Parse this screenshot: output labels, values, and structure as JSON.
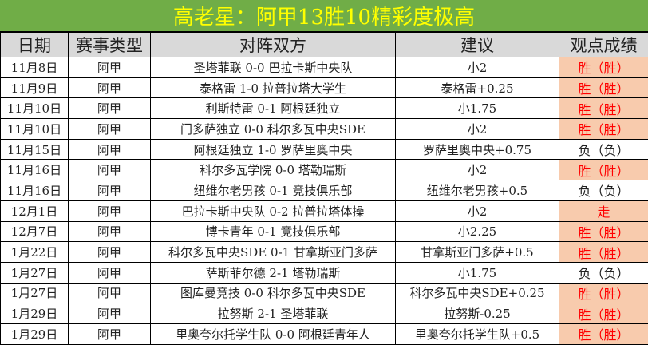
{
  "title": "高老星：阿甲13胜10精彩度极高",
  "headers": [
    "日期",
    "赛事类型",
    "对阵双方",
    "建议",
    "观点成绩"
  ],
  "colors": {
    "title_bg": "#70ad47",
    "title_text": "#ffff00",
    "header_bg": "#d9d9d9",
    "win_bg": "#f8cbad",
    "win_text": "#ff0000"
  },
  "rows": [
    {
      "date": "11月8日",
      "league": "阿甲",
      "match": "圣塔菲联 0-0 巴拉卡斯中央队",
      "tip": "小2",
      "result": "胜（胜）",
      "win": true
    },
    {
      "date": "11月9日",
      "league": "阿甲",
      "match": "泰格雷 1-0 拉普拉塔大学生",
      "tip": "泰格雷+0.25",
      "result": "胜（胜）",
      "win": true
    },
    {
      "date": "11月10日",
      "league": "阿甲",
      "match": "利斯特雷 0-1 阿根廷独立",
      "tip": "小1.75",
      "result": "胜（胜）",
      "win": true
    },
    {
      "date": "11月10日",
      "league": "阿甲",
      "match": "门多萨独立 0-0 科尔多瓦中央SDE",
      "tip": "小2",
      "result": "胜（胜）",
      "win": true
    },
    {
      "date": "11月15日",
      "league": "阿甲",
      "match": "阿根廷独立 1-0 罗萨里奥中央",
      "tip": "罗萨里奥中央+0.75",
      "result": "负（负）",
      "win": false
    },
    {
      "date": "11月16日",
      "league": "阿甲",
      "match": "科尔多瓦学院 0-0 塔勒瑞斯",
      "tip": "小2",
      "result": "胜（胜）",
      "win": true
    },
    {
      "date": "11月16日",
      "league": "阿甲",
      "match": "纽维尔老男孩 0-1 竞技俱乐部",
      "tip": "纽维尔老男孩+0.5",
      "result": "负（负）",
      "win": false
    },
    {
      "date": "12月1日",
      "league": "阿甲",
      "match": "巴拉卡斯中央队 0-2 拉普拉塔体操",
      "tip": "小2",
      "result": "走",
      "win": true
    },
    {
      "date": "12月7日",
      "league": "阿甲",
      "match": "博卡青年 0-1 竞技俱乐部",
      "tip": "小2.25",
      "result": "胜（胜）",
      "win": true
    },
    {
      "date": "1月22日",
      "league": "阿甲",
      "match": "科尔多瓦中央SDE 0-1 甘拿斯亚门多萨",
      "tip": "甘拿斯亚门多萨+0.5",
      "result": "胜（胜）",
      "win": true
    },
    {
      "date": "1月27日",
      "league": "阿甲",
      "match": "萨斯菲尔德 2-1 塔勒瑞斯",
      "tip": "小1.75",
      "result": "负（负）",
      "win": false
    },
    {
      "date": "1月27日",
      "league": "阿甲",
      "match": "图库曼竞技 0-0 科尔多瓦中央SDE",
      "tip": "科尔多瓦中央SDE+0.25",
      "result": "胜（胜）",
      "win": true
    },
    {
      "date": "1月29日",
      "league": "阿甲",
      "match": "拉努斯 2-1 圣塔菲联",
      "tip": "拉努斯-0.25",
      "result": "胜（胜）",
      "win": true
    },
    {
      "date": "1月29日",
      "league": "阿甲",
      "match": "里奥夸尔托学生队 0-0 阿根廷青年人",
      "tip": "里奥夸尔托学生队+0.5",
      "result": "胜（胜）",
      "win": true
    }
  ]
}
